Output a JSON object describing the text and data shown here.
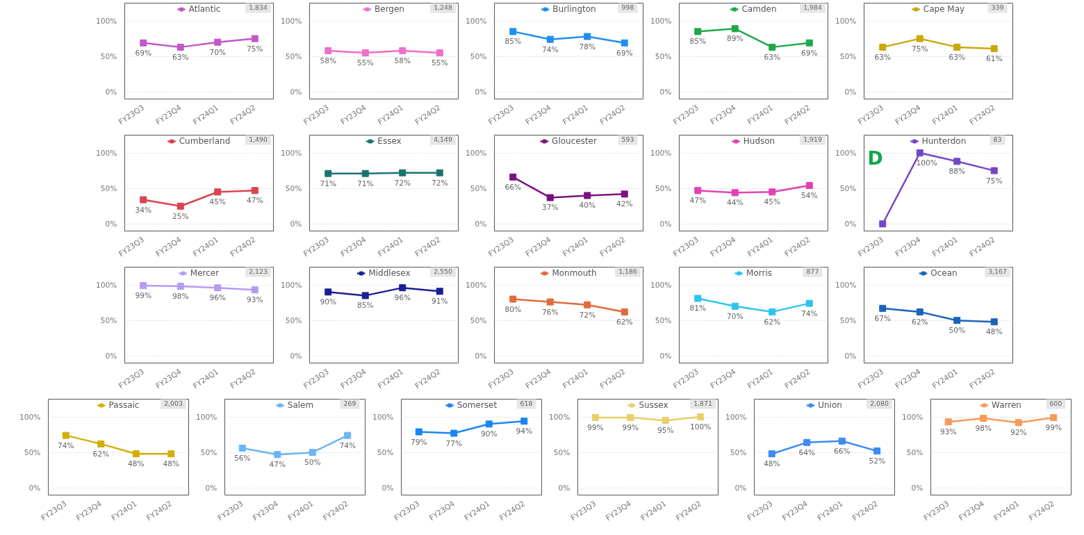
{
  "chart_data": [
    {
      "type": "line",
      "categories": [
        "FY23Q3",
        "FY23Q4",
        "FY24Q1",
        "FY24Q2"
      ],
      "series": [
        {
          "name": "Atlantic",
          "color": "#c158c9",
          "values": [
            69,
            63,
            70,
            75
          ]
        }
      ],
      "annotations": [
        "1,834"
      ],
      "value_labels": [
        "69%",
        "63%",
        "70%",
        "75%"
      ],
      "ylim": [
        -10,
        125
      ],
      "yticks": [
        {
          "value": 0,
          "label": "0%"
        },
        {
          "value": 50,
          "label": "50%"
        },
        {
          "value": 100,
          "label": "100%"
        }
      ],
      "grid": "y",
      "legend": "top",
      "marker": "square"
    },
    {
      "type": "line",
      "categories": [
        "FY23Q3",
        "FY23Q4",
        "FY24Q1",
        "FY24Q2"
      ],
      "series": [
        {
          "name": "Bergen",
          "color": "#ee6fcb",
          "values": [
            58,
            55,
            58,
            55
          ]
        }
      ],
      "annotations": [
        "1,248"
      ],
      "value_labels": [
        "58%",
        "55%",
        "58%",
        "55%"
      ],
      "ylim": [
        -10,
        125
      ],
      "yticks": [
        {
          "value": 0,
          "label": "0%"
        },
        {
          "value": 50,
          "label": "50%"
        },
        {
          "value": 100,
          "label": "100%"
        }
      ],
      "grid": "y",
      "legend": "top",
      "marker": "square"
    },
    {
      "type": "line",
      "categories": [
        "FY23Q3",
        "FY23Q4",
        "FY24Q1",
        "FY24Q2"
      ],
      "series": [
        {
          "name": "Burlington",
          "color": "#1f8ef1",
          "values": [
            85,
            74,
            78,
            69
          ]
        }
      ],
      "annotations": [
        "998"
      ],
      "value_labels": [
        "85%",
        "74%",
        "78%",
        "69%"
      ],
      "ylim": [
        -10,
        125
      ],
      "yticks": [
        {
          "value": 0,
          "label": "0%"
        },
        {
          "value": 50,
          "label": "50%"
        },
        {
          "value": 100,
          "label": "100%"
        }
      ],
      "grid": "y",
      "legend": "top",
      "marker": "square"
    },
    {
      "type": "line",
      "categories": [
        "FY23Q3",
        "FY23Q4",
        "FY24Q1",
        "FY24Q2"
      ],
      "series": [
        {
          "name": "Camden",
          "color": "#1fa84a",
          "values": [
            85,
            89,
            63,
            69
          ]
        }
      ],
      "annotations": [
        "1,984"
      ],
      "value_labels": [
        "85%",
        "89%",
        "63%",
        "69%"
      ],
      "ylim": [
        -10,
        125
      ],
      "yticks": [
        {
          "value": 0,
          "label": "0%"
        },
        {
          "value": 50,
          "label": "50%"
        },
        {
          "value": 100,
          "label": "100%"
        }
      ],
      "grid": "y",
      "legend": "top",
      "marker": "square"
    },
    {
      "type": "line",
      "categories": [
        "FY23Q3",
        "FY23Q4",
        "FY24Q1",
        "FY24Q2"
      ],
      "series": [
        {
          "name": "Cape May",
          "color": "#c9a80c",
          "values": [
            63,
            75,
            63,
            61
          ]
        }
      ],
      "annotations": [
        "339"
      ],
      "value_labels": [
        "63%",
        "75%",
        "63%",
        "61%"
      ],
      "ylim": [
        -10,
        125
      ],
      "yticks": [
        {
          "value": 0,
          "label": "0%"
        },
        {
          "value": 50,
          "label": "50%"
        },
        {
          "value": 100,
          "label": "100%"
        }
      ],
      "grid": "y",
      "legend": "top",
      "marker": "square"
    },
    {
      "type": "line",
      "categories": [
        "FY23Q3",
        "FY23Q4",
        "FY24Q1",
        "FY24Q2"
      ],
      "series": [
        {
          "name": "Cumberland",
          "color": "#d9434f",
          "values": [
            34,
            25,
            45,
            47
          ]
        }
      ],
      "annotations": [
        "1,490"
      ],
      "value_labels": [
        "34%",
        "25%",
        "45%",
        "47%"
      ],
      "ylim": [
        -10,
        125
      ],
      "yticks": [
        {
          "value": 0,
          "label": "0%"
        },
        {
          "value": 50,
          "label": "50%"
        },
        {
          "value": 100,
          "label": "100%"
        }
      ],
      "grid": "y",
      "legend": "top",
      "marker": "square"
    },
    {
      "type": "line",
      "categories": [
        "FY23Q3",
        "FY23Q4",
        "FY24Q1",
        "FY24Q2"
      ],
      "series": [
        {
          "name": "Essex",
          "color": "#1a7470",
          "values": [
            71,
            71,
            72,
            72
          ]
        }
      ],
      "annotations": [
        "4,149"
      ],
      "value_labels": [
        "71%",
        "71%",
        "72%",
        "72%"
      ],
      "ylim": [
        -10,
        125
      ],
      "yticks": [
        {
          "value": 0,
          "label": "0%"
        },
        {
          "value": 50,
          "label": "50%"
        },
        {
          "value": 100,
          "label": "100%"
        }
      ],
      "grid": "y",
      "legend": "top",
      "marker": "square"
    },
    {
      "type": "line",
      "categories": [
        "FY23Q3",
        "FY23Q4",
        "FY24Q1",
        "FY24Q2"
      ],
      "series": [
        {
          "name": "Gloucester",
          "color": "#7a127f",
          "values": [
            66,
            37,
            40,
            42
          ]
        }
      ],
      "annotations": [
        "593"
      ],
      "value_labels": [
        "66%",
        "37%",
        "40%",
        "42%"
      ],
      "ylim": [
        -10,
        125
      ],
      "yticks": [
        {
          "value": 0,
          "label": "0%"
        },
        {
          "value": 50,
          "label": "50%"
        },
        {
          "value": 100,
          "label": "100%"
        }
      ],
      "grid": "y",
      "legend": "top",
      "marker": "square"
    },
    {
      "type": "line",
      "categories": [
        "FY23Q3",
        "FY23Q4",
        "FY24Q1",
        "FY24Q2"
      ],
      "series": [
        {
          "name": "Hudson",
          "color": "#e540b0",
          "values": [
            47,
            44,
            45,
            54
          ]
        }
      ],
      "annotations": [
        "1,919"
      ],
      "value_labels": [
        "47%",
        "44%",
        "45%",
        "54%"
      ],
      "ylim": [
        -10,
        125
      ],
      "yticks": [
        {
          "value": 0,
          "label": "0%"
        },
        {
          "value": 50,
          "label": "50%"
        },
        {
          "value": 100,
          "label": "100%"
        }
      ],
      "grid": "y",
      "legend": "top",
      "marker": "square"
    },
    {
      "type": "line",
      "categories": [
        "FY23Q3",
        "FY23Q4",
        "FY24Q1",
        "FY24Q2"
      ],
      "series": [
        {
          "name": "Hunterdon",
          "color": "#7347c9",
          "values": [
            0,
            100,
            88,
            75
          ]
        }
      ],
      "annotations": [
        "83",
        "D"
      ],
      "value_labels": [
        null,
        "100%",
        "88%",
        "75%"
      ],
      "ylim": [
        -10,
        125
      ],
      "yticks": [
        {
          "value": 0,
          "label": "0%"
        },
        {
          "value": 50,
          "label": "50%"
        },
        {
          "value": 100,
          "label": "100%"
        }
      ],
      "grid": "y",
      "legend": "top",
      "marker": "square"
    },
    {
      "type": "line",
      "categories": [
        "FY23Q3",
        "FY23Q4",
        "FY24Q1",
        "FY24Q2"
      ],
      "series": [
        {
          "name": "Mercer",
          "color": "#b49cf5",
          "values": [
            99,
            98,
            96,
            93
          ]
        }
      ],
      "annotations": [
        "2,123"
      ],
      "value_labels": [
        "99%",
        "98%",
        "96%",
        "93%"
      ],
      "ylim": [
        -10,
        125
      ],
      "yticks": [
        {
          "value": 0,
          "label": "0%"
        },
        {
          "value": 50,
          "label": "50%"
        },
        {
          "value": 100,
          "label": "100%"
        }
      ],
      "grid": "y",
      "legend": "top",
      "marker": "square"
    },
    {
      "type": "line",
      "categories": [
        "FY23Q3",
        "FY23Q4",
        "FY24Q1",
        "FY24Q2"
      ],
      "series": [
        {
          "name": "Middlesex",
          "color": "#1a1f96",
          "values": [
            90,
            85,
            96,
            91
          ]
        }
      ],
      "annotations": [
        "2,550"
      ],
      "value_labels": [
        "90%",
        "85%",
        "96%",
        "91%"
      ],
      "ylim": [
        -10,
        125
      ],
      "yticks": [
        {
          "value": 0,
          "label": "0%"
        },
        {
          "value": 50,
          "label": "50%"
        },
        {
          "value": 100,
          "label": "100%"
        }
      ],
      "grid": "y",
      "legend": "top",
      "marker": "square"
    },
    {
      "type": "line",
      "categories": [
        "FY23Q3",
        "FY23Q4",
        "FY24Q1",
        "FY24Q2"
      ],
      "series": [
        {
          "name": "Monmouth",
          "color": "#e06b3a",
          "values": [
            80,
            76,
            72,
            62
          ]
        }
      ],
      "annotations": [
        "1,186"
      ],
      "value_labels": [
        "80%",
        "76%",
        "72%",
        "62%"
      ],
      "ylim": [
        -10,
        125
      ],
      "yticks": [
        {
          "value": 0,
          "label": "0%"
        },
        {
          "value": 50,
          "label": "50%"
        },
        {
          "value": 100,
          "label": "100%"
        }
      ],
      "grid": "y",
      "legend": "top",
      "marker": "square"
    },
    {
      "type": "line",
      "categories": [
        "FY23Q3",
        "FY23Q4",
        "FY24Q1",
        "FY24Q2"
      ],
      "series": [
        {
          "name": "Morris",
          "color": "#2ec4ec",
          "values": [
            81,
            70,
            62,
            74
          ]
        }
      ],
      "annotations": [
        "877"
      ],
      "value_labels": [
        "81%",
        "70%",
        "62%",
        "74%"
      ],
      "ylim": [
        -10,
        125
      ],
      "yticks": [
        {
          "value": 0,
          "label": "0%"
        },
        {
          "value": 50,
          "label": "50%"
        },
        {
          "value": 100,
          "label": "100%"
        }
      ],
      "grid": "y",
      "legend": "top",
      "marker": "square"
    },
    {
      "type": "line",
      "categories": [
        "FY23Q3",
        "FY23Q4",
        "FY24Q1",
        "FY24Q2"
      ],
      "series": [
        {
          "name": "Ocean",
          "color": "#1b63b8",
          "values": [
            67,
            62,
            50,
            48
          ]
        }
      ],
      "annotations": [
        "3,167"
      ],
      "value_labels": [
        "67%",
        "62%",
        "50%",
        "48%"
      ],
      "ylim": [
        -10,
        125
      ],
      "yticks": [
        {
          "value": 0,
          "label": "0%"
        },
        {
          "value": 50,
          "label": "50%"
        },
        {
          "value": 100,
          "label": "100%"
        }
      ],
      "grid": "y",
      "legend": "top",
      "marker": "square"
    },
    {
      "type": "line",
      "categories": [
        "FY23Q3",
        "FY23Q4",
        "FY24Q1",
        "FY24Q2"
      ],
      "series": [
        {
          "name": "Passaic",
          "color": "#d4ae0b",
          "values": [
            74,
            62,
            48,
            48
          ]
        }
      ],
      "annotations": [
        "2,003"
      ],
      "value_labels": [
        "74%",
        "62%",
        "48%",
        "48%"
      ],
      "ylim": [
        -10,
        125
      ],
      "yticks": [
        {
          "value": 0,
          "label": "0%"
        },
        {
          "value": 50,
          "label": "50%"
        },
        {
          "value": 100,
          "label": "100%"
        }
      ],
      "grid": "y",
      "legend": "top",
      "marker": "square"
    },
    {
      "type": "line",
      "categories": [
        "FY23Q3",
        "FY23Q4",
        "FY24Q1",
        "FY24Q2"
      ],
      "series": [
        {
          "name": "Salem",
          "color": "#6bb4f5",
          "values": [
            56,
            47,
            50,
            74
          ]
        }
      ],
      "annotations": [
        "269"
      ],
      "value_labels": [
        "56%",
        "47%",
        "50%",
        "74%"
      ],
      "ylim": [
        -10,
        125
      ],
      "yticks": [
        {
          "value": 0,
          "label": "0%"
        },
        {
          "value": 50,
          "label": "50%"
        },
        {
          "value": 100,
          "label": "100%"
        }
      ],
      "grid": "y",
      "legend": "top",
      "marker": "square"
    },
    {
      "type": "line",
      "categories": [
        "FY23Q3",
        "FY23Q4",
        "FY24Q1",
        "FY24Q2"
      ],
      "series": [
        {
          "name": "Somerset",
          "color": "#1a86f0",
          "values": [
            79,
            77,
            90,
            94
          ]
        }
      ],
      "annotations": [
        "618"
      ],
      "value_labels": [
        "79%",
        "77%",
        "90%",
        "94%"
      ],
      "ylim": [
        -10,
        125
      ],
      "yticks": [
        {
          "value": 0,
          "label": "0%"
        },
        {
          "value": 50,
          "label": "50%"
        },
        {
          "value": 100,
          "label": "100%"
        }
      ],
      "grid": "y",
      "legend": "top",
      "marker": "square"
    },
    {
      "type": "line",
      "categories": [
        "FY23Q3",
        "FY23Q4",
        "FY24Q1",
        "FY24Q2"
      ],
      "series": [
        {
          "name": "Sussex",
          "color": "#e8cf6a",
          "values": [
            99,
            99,
            95,
            100
          ]
        }
      ],
      "annotations": [
        "1,871"
      ],
      "value_labels": [
        "99%",
        "99%",
        "95%",
        "100%"
      ],
      "ylim": [
        -10,
        125
      ],
      "yticks": [
        {
          "value": 0,
          "label": "0%"
        },
        {
          "value": 50,
          "label": "50%"
        },
        {
          "value": 100,
          "label": "100%"
        }
      ],
      "grid": "y",
      "legend": "top",
      "marker": "square"
    },
    {
      "type": "line",
      "categories": [
        "FY23Q3",
        "FY23Q4",
        "FY24Q1",
        "FY24Q2"
      ],
      "series": [
        {
          "name": "Union",
          "color": "#3d8af2",
          "values": [
            48,
            64,
            66,
            52
          ]
        }
      ],
      "annotations": [
        "2,080"
      ],
      "value_labels": [
        "48%",
        "64%",
        "66%",
        "52%"
      ],
      "ylim": [
        -10,
        125
      ],
      "yticks": [
        {
          "value": 0,
          "label": "0%"
        },
        {
          "value": 50,
          "label": "50%"
        },
        {
          "value": 100,
          "label": "100%"
        }
      ],
      "grid": "y",
      "legend": "top",
      "marker": "square"
    },
    {
      "type": "line",
      "categories": [
        "FY23Q3",
        "FY23Q4",
        "FY24Q1",
        "FY24Q2"
      ],
      "series": [
        {
          "name": "Warren",
          "color": "#f59a5c",
          "values": [
            93,
            98,
            92,
            99
          ]
        }
      ],
      "annotations": [
        "600"
      ],
      "value_labels": [
        "93%",
        "98%",
        "92%",
        "99%"
      ],
      "ylim": [
        -10,
        125
      ],
      "yticks": [
        {
          "value": 0,
          "label": "0%"
        },
        {
          "value": 50,
          "label": "50%"
        },
        {
          "value": 100,
          "label": "100%"
        }
      ],
      "grid": "y",
      "legend": "top",
      "marker": "square"
    }
  ]
}
